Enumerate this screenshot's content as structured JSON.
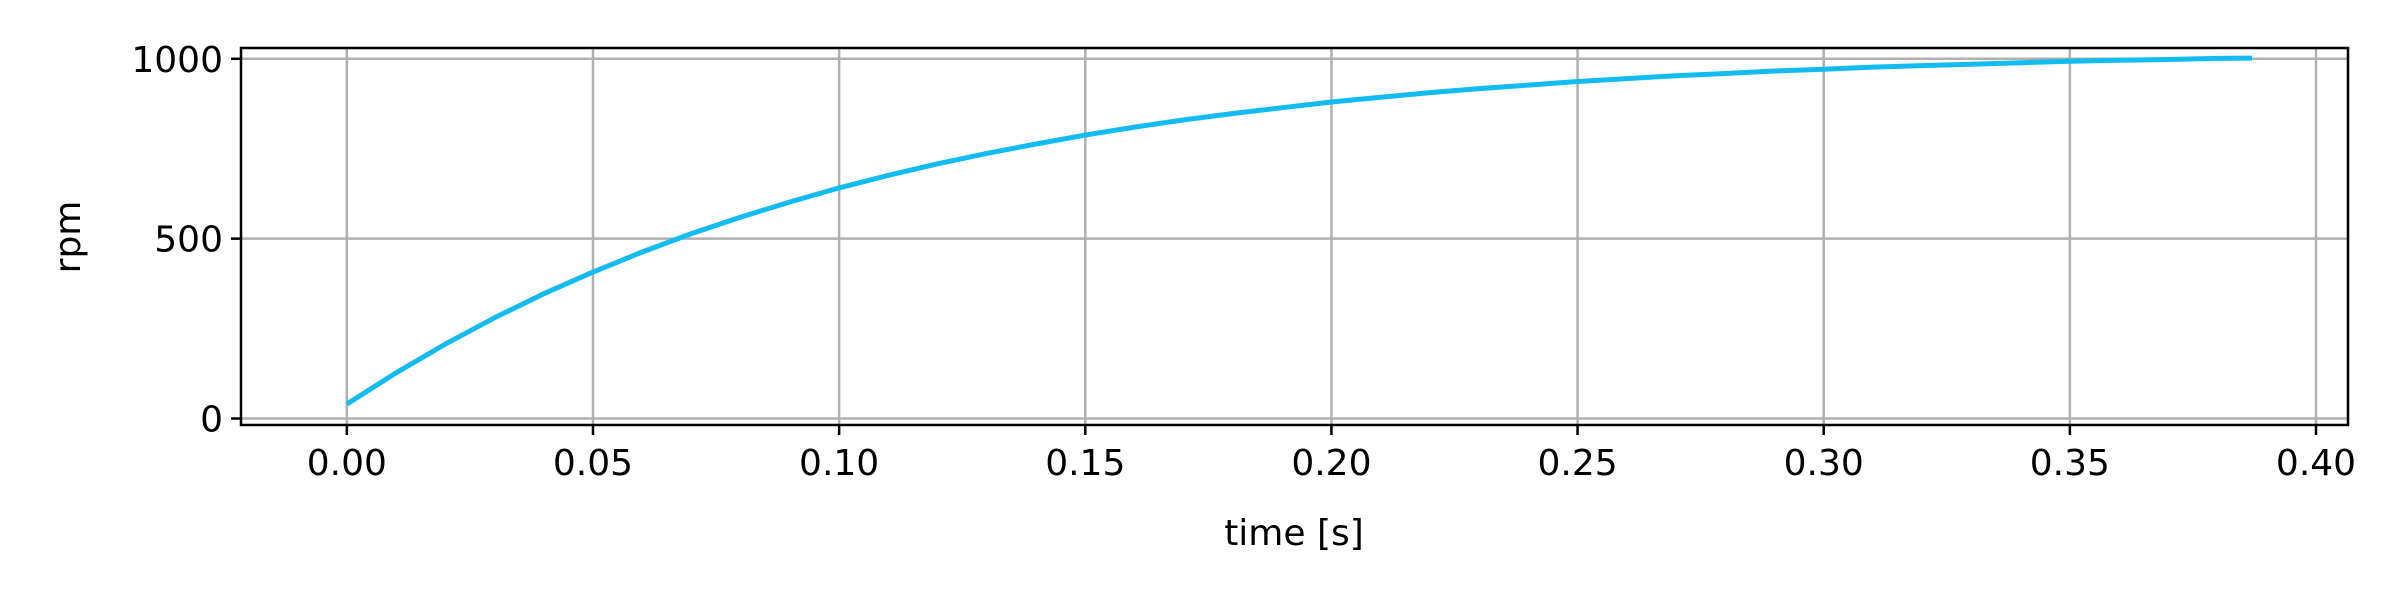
{
  "chart_data": {
    "type": "line",
    "title": "",
    "xlabel": "time [s]",
    "ylabel": "rpm",
    "xlim": [
      -0.0215,
      0.4065
    ],
    "ylim": [
      -18,
      1030
    ],
    "xticks": [
      0.0,
      0.05,
      0.1,
      0.15,
      0.2,
      0.25,
      0.3,
      0.35,
      0.4
    ],
    "xtick_labels": [
      "0.00",
      "0.05",
      "0.10",
      "0.15",
      "0.20",
      "0.25",
      "0.30",
      "0.35",
      "0.40"
    ],
    "yticks": [
      0,
      500,
      1000
    ],
    "ytick_labels": [
      "0",
      "500",
      "1000"
    ],
    "grid": true,
    "series": [
      {
        "color": "#12bbf0",
        "x": [
          0.0,
          0.01,
          0.02,
          0.03,
          0.04,
          0.05,
          0.06,
          0.07,
          0.08,
          0.09,
          0.1,
          0.11,
          0.12,
          0.13,
          0.14,
          0.15,
          0.16,
          0.17,
          0.18,
          0.19,
          0.2,
          0.21,
          0.22,
          0.23,
          0.24,
          0.25,
          0.26,
          0.27,
          0.28,
          0.29,
          0.3,
          0.31,
          0.32,
          0.33,
          0.34,
          0.35,
          0.36,
          0.37,
          0.38,
          0.387
        ],
        "y": [
          40,
          127,
          207,
          280,
          347,
          407,
          463,
          514,
          560,
          602,
          641,
          676,
          708,
          737,
          763,
          788,
          810,
          830,
          848,
          864,
          880,
          893,
          906,
          917,
          927,
          937,
          945,
          953,
          959,
          966,
          971,
          977,
          981,
          985,
          989,
          993,
          996,
          998,
          1001,
          1002
        ]
      }
    ]
  }
}
